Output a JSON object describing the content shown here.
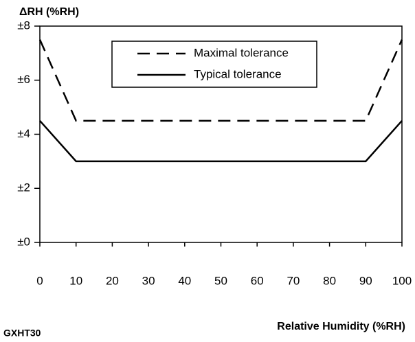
{
  "chart_data": {
    "type": "line",
    "y_label": "ΔRH (%RH)",
    "x_label": "Relative Humidity (%RH)",
    "model": "GXHT30",
    "x": [
      0,
      10,
      90,
      100
    ],
    "series": [
      {
        "name": "Maximal tolerance",
        "color": "#000000",
        "dash": true,
        "values": [
          7.5,
          4.5,
          4.5,
          7.5
        ]
      },
      {
        "name": "Typical tolerance",
        "color": "#000000",
        "dash": false,
        "values": [
          4.5,
          3,
          3,
          4.5
        ]
      }
    ],
    "xlim": [
      0,
      100
    ],
    "xticks": [
      0,
      10,
      20,
      30,
      40,
      50,
      60,
      70,
      80,
      90,
      100
    ],
    "ylim": [
      0,
      8
    ],
    "yticks": [
      {
        "value": 0,
        "label": "±0"
      },
      {
        "value": 2,
        "label": "±2"
      },
      {
        "value": 4,
        "label": "±4"
      },
      {
        "value": 6,
        "label": "±6"
      },
      {
        "value": 8,
        "label": "±8"
      }
    ]
  }
}
